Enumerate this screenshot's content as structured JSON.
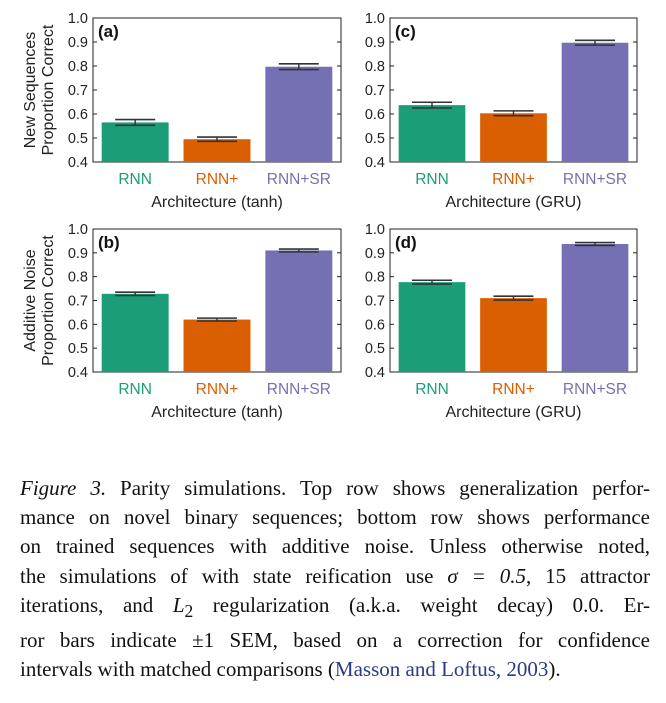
{
  "chart_data": [
    {
      "type": "bar",
      "panel_label": "(a)",
      "row_label": "New Sequences",
      "ylabel": "Proportion Correct",
      "xlabel": "Architecture (tanh)",
      "categories": [
        "RNN",
        "RNN+",
        "RNN+SR"
      ],
      "values": [
        0.565,
        0.495,
        0.797
      ],
      "errors": [
        0.012,
        0.009,
        0.012
      ],
      "ylim": [
        0.4,
        1.0
      ],
      "yticks": [
        "0.4",
        "0.5",
        "0.6",
        "0.7",
        "0.8",
        "0.9",
        "1.0"
      ],
      "colors": [
        "#1b9e77",
        "#d95f02",
        "#7570b3"
      ]
    },
    {
      "type": "bar",
      "panel_label": "(c)",
      "row_label": "",
      "ylabel": "",
      "xlabel": "Architecture (GRU)",
      "categories": [
        "RNN",
        "RNN+",
        "RNN+SR"
      ],
      "values": [
        0.637,
        0.603,
        0.897
      ],
      "errors": [
        0.012,
        0.01,
        0.01
      ],
      "ylim": [
        0.4,
        1.0
      ],
      "yticks": [
        "0.4",
        "0.5",
        "0.6",
        "0.7",
        "0.8",
        "0.9",
        "1.0"
      ],
      "colors": [
        "#1b9e77",
        "#d95f02",
        "#7570b3"
      ]
    },
    {
      "type": "bar",
      "panel_label": "(b)",
      "row_label": "Additive Noise",
      "ylabel": "Proportion Correct",
      "xlabel": "Architecture (tanh)",
      "categories": [
        "RNN",
        "RNN+",
        "RNN+SR"
      ],
      "values": [
        0.728,
        0.62,
        0.91
      ],
      "errors": [
        0.007,
        0.006,
        0.006
      ],
      "ylim": [
        0.4,
        1.0
      ],
      "yticks": [
        "0.4",
        "0.5",
        "0.6",
        "0.7",
        "0.8",
        "0.9",
        "1.0"
      ],
      "colors": [
        "#1b9e77",
        "#d95f02",
        "#7570b3"
      ]
    },
    {
      "type": "bar",
      "panel_label": "(d)",
      "row_label": "",
      "ylabel": "",
      "xlabel": "Architecture (GRU)",
      "categories": [
        "RNN",
        "RNN+",
        "RNN+SR"
      ],
      "values": [
        0.777,
        0.71,
        0.937
      ],
      "errors": [
        0.008,
        0.008,
        0.006
      ],
      "ylim": [
        0.4,
        1.0
      ],
      "yticks": [
        "0.4",
        "0.5",
        "0.6",
        "0.7",
        "0.8",
        "0.9",
        "1.0"
      ],
      "colors": [
        "#1b9e77",
        "#d95f02",
        "#7570b3"
      ]
    }
  ],
  "caption": {
    "figure_label": "Figure 3.",
    "line1_rest": " Parity simulations. Top row shows generalization perfor-",
    "line2": "mance on novel binary sequences; bottom row shows performance",
    "line3": "on trained sequences with additive noise. Unless otherwise noted,",
    "line4_a": "the simulations of with state reification use ",
    "sigma_expr": "σ = 0.5",
    "line4_b": ", 15 attractor",
    "line5_a": "iterations, and ",
    "l2_expr": "L",
    "l2_sub": "2",
    "line5_b": " regularization (a.k.a.  weight decay) 0.0.  Er-",
    "line6_a": "ror bars indicate ",
    "pm_expr": "±1",
    "line6_b": " SEM, based on a correction for confidence",
    "line7_a": "intervals with matched comparisons (",
    "citation": "Masson and Loftus, 2003",
    "line7_b": ")."
  }
}
